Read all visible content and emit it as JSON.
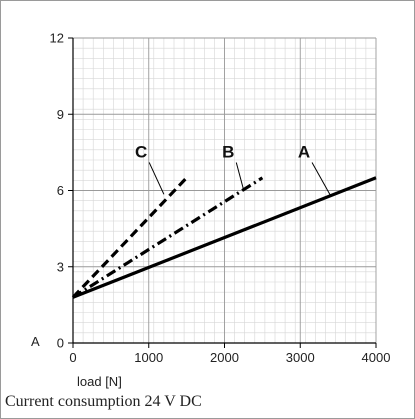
{
  "chart_data": {
    "type": "line",
    "title": "",
    "caption": "Current consumption 24 V DC",
    "xlabel": "load  [N]",
    "ylabel": "A",
    "xlim": [
      0,
      4000
    ],
    "ylim": [
      0,
      12
    ],
    "x_ticks": [
      0,
      1000,
      2000,
      3000,
      4000
    ],
    "y_ticks": [
      0,
      3,
      6,
      9,
      12
    ],
    "grid": true,
    "series": [
      {
        "name": "A",
        "style": "solid",
        "x": [
          0,
          4000
        ],
        "y": [
          1.8,
          6.5
        ]
      },
      {
        "name": "B",
        "style": "dashdot",
        "x": [
          0,
          2500
        ],
        "y": [
          1.8,
          6.5
        ]
      },
      {
        "name": "C",
        "style": "dashed",
        "x": [
          0,
          1500
        ],
        "y": [
          1.8,
          6.5
        ]
      }
    ],
    "annotations": [
      {
        "series": "A",
        "text": "A",
        "label_x": 3050,
        "label_y": 7.3,
        "point_x": 3400,
        "point_y": 5.8
      },
      {
        "series": "B",
        "text": "B",
        "label_x": 2050,
        "label_y": 7.3,
        "point_x": 2250,
        "point_y": 6.05
      },
      {
        "series": "C",
        "text": "C",
        "label_x": 900,
        "label_y": 7.3,
        "point_x": 1200,
        "point_y": 5.85
      }
    ]
  }
}
